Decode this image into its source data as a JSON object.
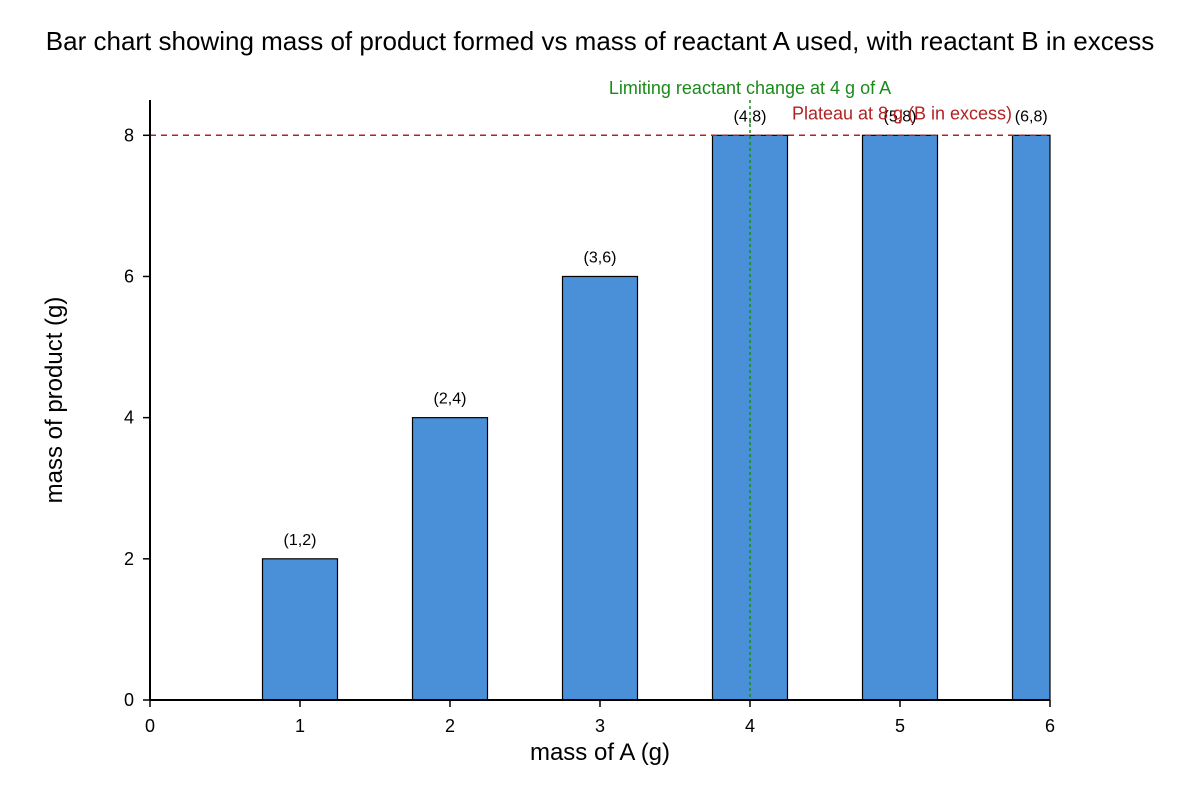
{
  "chart_data": {
    "type": "bar",
    "title": "Bar chart showing mass of product formed vs mass of reactant A used, with reactant B in excess",
    "xlabel": "mass of A (g)",
    "ylabel": "mass of product (g)",
    "xlim": [
      0,
      6
    ],
    "ylim": [
      0,
      8.5
    ],
    "x_ticks": [
      0,
      1,
      2,
      3,
      4,
      5,
      6
    ],
    "y_ticks": [
      0,
      2,
      4,
      6,
      8
    ],
    "grid": false,
    "bars": [
      {
        "x": 1,
        "value": 2,
        "label": "(1,2)"
      },
      {
        "x": 2,
        "value": 4,
        "label": "(2,4)"
      },
      {
        "x": 3,
        "value": 6,
        "label": "(3,6)"
      },
      {
        "x": 4,
        "value": 8,
        "label": "(4,8)"
      },
      {
        "x": 5,
        "value": 8,
        "label": "(5,8)"
      },
      {
        "x": 6,
        "value": 8,
        "label": "(6,8)"
      }
    ],
    "bar_color": "#4a90d9",
    "bar_width": 0.5,
    "reference_lines": {
      "horizontal": {
        "y": 8,
        "color": "#b22222",
        "style": "dashed",
        "label": "Plateau at 8 g (B in excess)"
      },
      "vertical": {
        "x": 4,
        "color": "#1a8a1a",
        "style": "dotted",
        "label": "Limiting reactant change at 4 g of A"
      }
    }
  }
}
